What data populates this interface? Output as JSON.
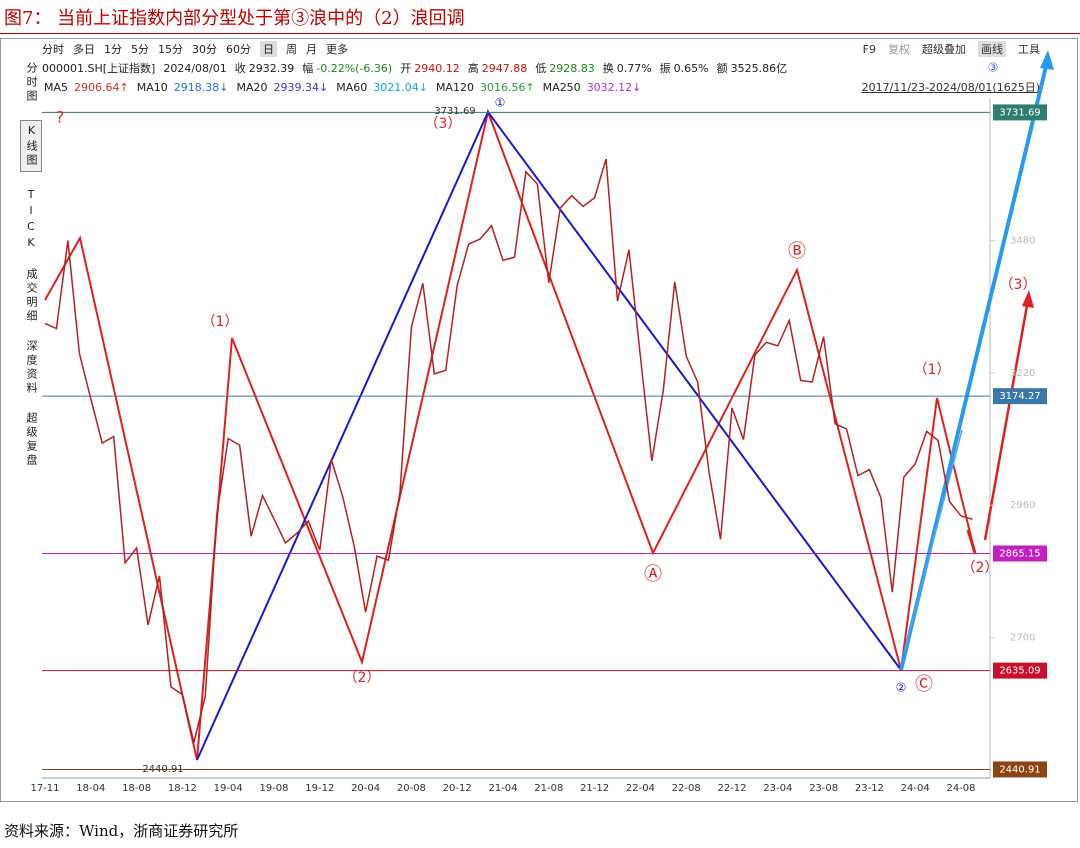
{
  "title": "图7：  当前上证指数内部分型处于第③浪中的（2）浪回调",
  "toolbar_left": [
    "分时",
    "多日",
    "1分",
    "5分",
    "15分",
    "30分",
    "60分",
    "日",
    "周",
    "月",
    "更多"
  ],
  "toolbar_right": [
    "F9",
    "复权",
    "超级叠加",
    "画线",
    "工具"
  ],
  "info": {
    "code": "000001.SH[上证指数]",
    "date": "2024/08/01",
    "fields": [
      {
        "label": "收",
        "value": "2932.39"
      },
      {
        "label": "幅",
        "value": "-0.22%(-6.36)"
      },
      {
        "label": "开",
        "value": "2940.12"
      },
      {
        "label": "高",
        "value": "2947.88"
      },
      {
        "label": "低",
        "value": "2928.83"
      },
      {
        "label": "换",
        "value": "0.77%"
      },
      {
        "label": "振",
        "value": "0.65%"
      },
      {
        "label": "额",
        "value": "3525.86亿"
      }
    ]
  },
  "ma": [
    {
      "label": "MA5",
      "value": "2906.64↑",
      "color": "#c0392b"
    },
    {
      "label": "MA10",
      "value": "2918.38↓",
      "color": "#2a6fd6"
    },
    {
      "label": "MA20",
      "value": "2939.34↓",
      "color": "#3a3ad0"
    },
    {
      "label": "MA60",
      "value": "3021.04↓",
      "color": "#10a8c8"
    },
    {
      "label": "MA120",
      "value": "3016.56↑",
      "color": "#2e9a3a"
    },
    {
      "label": "MA250",
      "value": "3032.12↓",
      "color": "#b030c8"
    }
  ],
  "range": "2017/11/23-2024/08/01(1625日)",
  "sidebar": [
    "分时图",
    "K线图",
    "TICK",
    "成交明细",
    "深度资料",
    "超级复盘"
  ],
  "chart_data": {
    "type": "line",
    "color": "#b22222",
    "categories": [
      "17-11",
      null,
      null,
      null,
      "18-04",
      null,
      null,
      null,
      "18-08",
      null,
      null,
      null,
      "18-12",
      null,
      null,
      null,
      "19-04",
      null,
      null,
      null,
      "19-08",
      null,
      null,
      null,
      "19-12",
      null,
      null,
      null,
      "20-04",
      null,
      null,
      null,
      "20-08",
      null,
      null,
      null,
      "20-12",
      null,
      null,
      null,
      "21-04",
      null,
      null,
      null,
      "21-08",
      null,
      null,
      null,
      "21-12",
      null,
      null,
      null,
      "22-04",
      null,
      null,
      null,
      "22-08",
      null,
      null,
      null,
      "22-12",
      null,
      null,
      null,
      "23-04",
      null,
      null,
      null,
      "23-08",
      null,
      null,
      null,
      "23-12",
      null,
      null,
      null,
      "24-04",
      null,
      null,
      null,
      "24-08",
      null
    ],
    "values": [
      3317,
      3307,
      3480,
      3259,
      3169,
      3082,
      3095,
      2847,
      2876,
      2725,
      2821,
      2603,
      2588,
      2494,
      2585,
      2941,
      3091,
      3078,
      2899,
      2979,
      2933,
      2886,
      2905,
      2929,
      2872,
      3050,
      2977,
      2880,
      2750,
      2860,
      2852,
      2985,
      3310,
      3396,
      3218,
      3225,
      3392,
      3473,
      3483,
      3509,
      3441,
      3447,
      3615,
      3591,
      3397,
      3544,
      3568,
      3547,
      3564,
      3640,
      3361,
      3462,
      3252,
      3047,
      3186,
      3399,
      3253,
      3202,
      3024,
      2893,
      3151,
      3089,
      3255,
      3280,
      3273,
      3323,
      3205,
      3202,
      3291,
      3120,
      3110,
      3018,
      3030,
      2975,
      2789,
      3015,
      3041,
      3105,
      3087,
      2967,
      2939,
      2932.39
    ],
    "ylim": [
      2430,
      3760
    ],
    "yticks": [
      2700,
      2960,
      3220,
      3480
    ],
    "levels": [
      {
        "value": 3731.69,
        "color": "#2e7d6e"
      },
      {
        "value": 3174.27,
        "color": "#3a78a8"
      },
      {
        "value": 2865.15,
        "color": "#c020c0"
      },
      {
        "value": 2635.09,
        "color": "#c8102e"
      },
      {
        "value": 2440.91,
        "color": "#8b4513"
      }
    ],
    "waves": [
      "（3）",
      "（1）",
      "（2）",
      "Ⓐ",
      "Ⓑ",
      "Ⓒ",
      "（1）",
      "（2）",
      "（3）",
      "①",
      "②",
      "③",
      "?"
    ]
  },
  "source": "资料来源：Wind，浙商证券研究所"
}
